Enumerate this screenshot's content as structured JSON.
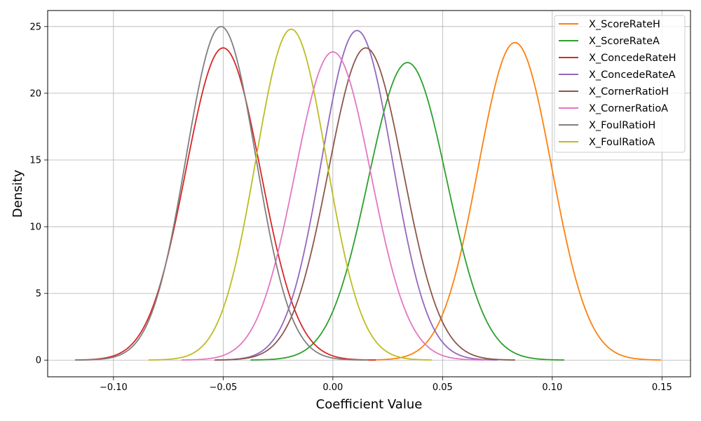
{
  "chart_data": {
    "type": "line",
    "title": "",
    "xlabel": "Coefficient Value",
    "ylabel": "Density",
    "xlim": [
      -0.13,
      0.163
    ],
    "ylim": [
      -1.25,
      26.2
    ],
    "xticks": [
      -0.1,
      -0.05,
      0.0,
      0.05,
      0.1,
      0.15
    ],
    "xtick_labels": [
      "−0.10",
      "−0.05",
      "0.00",
      "0.05",
      "0.10",
      "0.15"
    ],
    "yticks": [
      0,
      5,
      10,
      15,
      20,
      25
    ],
    "ytick_labels": [
      "0",
      "5",
      "10",
      "15",
      "20",
      "25"
    ],
    "grid": true,
    "legend_position": "upper right",
    "series": [
      {
        "name": "X_ScoreRateH",
        "color": "#ff7f0e",
        "mean": 0.083,
        "peak": 23.8,
        "range": [
          0.0185,
          0.1495
        ]
      },
      {
        "name": "X_ScoreRateA",
        "color": "#2ca02c",
        "mean": 0.034,
        "peak": 22.3,
        "range": [
          -0.0375,
          0.1055
        ]
      },
      {
        "name": "X_ConcedeRateH",
        "color": "#d62728",
        "mean": -0.05,
        "peak": 23.4,
        "range": [
          -0.1175,
          0.0195
        ]
      },
      {
        "name": "X_ConcedeRateA",
        "color": "#9467bd",
        "mean": 0.011,
        "peak": 24.7,
        "range": [
          -0.053,
          0.075
        ]
      },
      {
        "name": "X_CornerRatioH",
        "color": "#8c564b",
        "mean": 0.015,
        "peak": 23.4,
        "range": [
          -0.054,
          0.083
        ]
      },
      {
        "name": "X_CornerRatioA",
        "color": "#e377c2",
        "mean": 0.0,
        "peak": 23.1,
        "range": [
          -0.069,
          0.069
        ]
      },
      {
        "name": "X_FoulRatioH",
        "color": "#7f7f7f",
        "mean": -0.051,
        "peak": 25.0,
        "range": [
          -0.1175,
          0.016
        ]
      },
      {
        "name": "X_FoulRatioA",
        "color": "#bcbd22",
        "mean": -0.019,
        "peak": 24.8,
        "range": [
          -0.084,
          0.045
        ]
      }
    ]
  }
}
